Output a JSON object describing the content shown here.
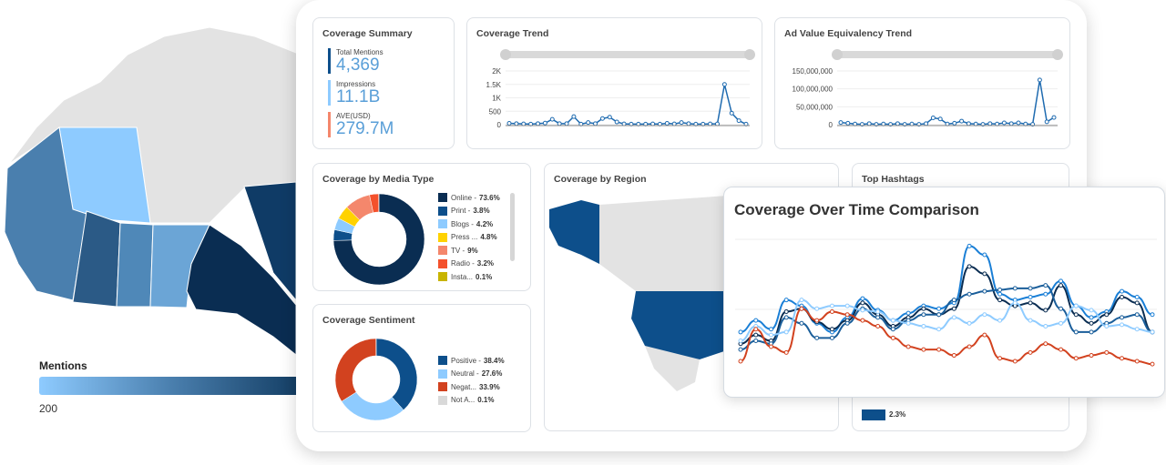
{
  "map": {
    "legend_title": "Mentions",
    "legend_min": "200",
    "colors": {
      "light": "#8ecbff",
      "mid": "#4a7fae",
      "dark": "#0a2d52",
      "grey": "#e3e3e3"
    }
  },
  "summary": {
    "title": "Coverage Summary",
    "metrics": [
      {
        "label": "Total Mentions",
        "value": "4,369",
        "color": "#0d4f8b"
      },
      {
        "label": "Impressions",
        "value": "11.1B",
        "color": "#8ecbff"
      },
      {
        "label": "AVE(USD)",
        "value": "279.7M",
        "color": "#f4876c"
      }
    ]
  },
  "coverage_trend": {
    "title": "Coverage Trend",
    "yticks": [
      "2K",
      "1.5K",
      "1K",
      "500",
      "0"
    ]
  },
  "ave_trend": {
    "title": "Ad Value Equivalency Trend",
    "yticks": [
      "150,000,000",
      "100,000,000",
      "50,000,000",
      "0"
    ]
  },
  "media_type": {
    "title": "Coverage by Media Type",
    "items": [
      {
        "label": "Online -",
        "pct": "73.6%",
        "color": "#0a2d52"
      },
      {
        "label": "Print -",
        "pct": "3.8%",
        "color": "#0d4f8b"
      },
      {
        "label": "Blogs -",
        "pct": "4.2%",
        "color": "#8ecbff"
      },
      {
        "label": "Press ...",
        "pct": "4.8%",
        "color": "#ffd200"
      },
      {
        "label": "TV -",
        "pct": "9%",
        "color": "#f4876c"
      },
      {
        "label": "Radio -",
        "pct": "3.2%",
        "color": "#f4512c"
      },
      {
        "label": "Insta...",
        "pct": "0.1%",
        "color": "#c8b400"
      }
    ]
  },
  "sentiment": {
    "title": "Coverage Sentiment",
    "items": [
      {
        "label": "Positive -",
        "pct": "38.4%",
        "color": "#0d4f8b"
      },
      {
        "label": "Neutral -",
        "pct": "27.6%",
        "color": "#8ecbff"
      },
      {
        "label": "Negat...",
        "pct": "33.9%",
        "color": "#d2421f"
      },
      {
        "label": "Not A...",
        "pct": "0.1%",
        "color": "#d9d9d9"
      }
    ]
  },
  "region": {
    "title": "Coverage by Region"
  },
  "hashtags": {
    "title": "Top Hashtags",
    "bar_pct": "2.3%"
  },
  "comparison": {
    "title": "Coverage Over Time Comparison"
  },
  "chart_data": [
    {
      "type": "line",
      "title": "Coverage Trend",
      "ylim": [
        0,
        2000
      ],
      "values": [
        50,
        40,
        30,
        20,
        40,
        60,
        200,
        40,
        40,
        300,
        20,
        80,
        40,
        230,
        280,
        100,
        30,
        20,
        20,
        20,
        30,
        20,
        50,
        30,
        80,
        40,
        20,
        20,
        30,
        30,
        1500,
        430,
        150,
        20
      ]
    },
    {
      "type": "line",
      "title": "Ad Value Equivalency Trend",
      "ylim": [
        0,
        150000000
      ],
      "values": [
        6000000,
        4000000,
        2000000,
        1000000,
        3000000,
        1000000,
        2000000,
        1000000,
        3000000,
        1000000,
        2000000,
        1000000,
        3000000,
        19000000,
        16000000,
        2000000,
        4000000,
        10000000,
        3000000,
        2000000,
        1000000,
        3000000,
        2000000,
        5000000,
        3000000,
        5000000,
        2000000,
        1000000,
        125000000,
        8000000,
        20000000
      ]
    },
    {
      "type": "pie",
      "title": "Coverage by Media Type",
      "categories": [
        "Online",
        "Print",
        "Blogs",
        "Press",
        "TV",
        "Radio",
        "Insta"
      ],
      "values": [
        73.6,
        3.8,
        4.2,
        4.8,
        9,
        3.2,
        0.1
      ]
    },
    {
      "type": "pie",
      "title": "Coverage Sentiment",
      "categories": [
        "Positive",
        "Neutral",
        "Negative",
        "Not A..."
      ],
      "values": [
        38.4,
        27.6,
        33.9,
        0.1
      ]
    },
    {
      "type": "line",
      "title": "Coverage Over Time Comparison",
      "series": [
        {
          "color": "#1a7fd6",
          "values": [
            40,
            48,
            42,
            62,
            58,
            46,
            40,
            50,
            63,
            55,
            48,
            53,
            58,
            56,
            60,
            99,
            93,
            66,
            62,
            64,
            66,
            75,
            58,
            50,
            54,
            68,
            64,
            52
          ]
        },
        {
          "color": "#0a2d52",
          "values": [
            32,
            38,
            34,
            54,
            56,
            47,
            42,
            48,
            60,
            52,
            44,
            50,
            56,
            52,
            56,
            85,
            80,
            62,
            58,
            60,
            55,
            72,
            52,
            46,
            52,
            64,
            60,
            40
          ]
        },
        {
          "color": "#1a5e9a",
          "values": [
            28,
            34,
            32,
            50,
            46,
            36,
            36,
            46,
            56,
            50,
            42,
            48,
            52,
            52,
            62,
            66,
            68,
            69,
            70,
            70,
            72,
            56,
            40,
            40,
            46,
            50,
            52,
            40
          ]
        },
        {
          "color": "#8ecbff",
          "values": [
            34,
            44,
            38,
            40,
            62,
            56,
            58,
            58,
            55,
            54,
            48,
            46,
            44,
            42,
            50,
            46,
            52,
            48,
            60,
            48,
            44,
            46,
            58,
            55,
            44,
            45,
            42,
            40
          ]
        },
        {
          "color": "#d2421f",
          "values": [
            20,
            42,
            30,
            26,
            56,
            48,
            54,
            52,
            48,
            44,
            36,
            30,
            28,
            28,
            24,
            30,
            38,
            22,
            20,
            26,
            32,
            28,
            22,
            24,
            26,
            22,
            20,
            18
          ]
        }
      ]
    }
  ]
}
